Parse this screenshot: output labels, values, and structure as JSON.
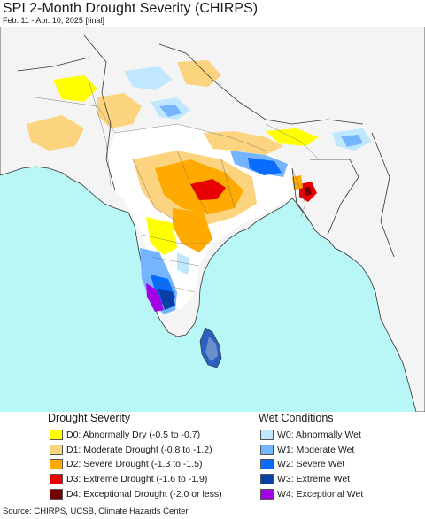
{
  "title": "SPI 2-Month Drought Severity (CHIRPS)",
  "subtitle": "Feb. 11 - Apr. 10, 2025 [final]",
  "legend": {
    "drought_title": "Drought Severity",
    "drought_items": [
      {
        "label": "D0: Abnormally Dry (-0.5 to -0.7)",
        "color": "#ffff00"
      },
      {
        "label": "D1: Moderate Drought (-0.8 to -1.2)",
        "color": "#fcd37f"
      },
      {
        "label": "D2: Severe Drought (-1.3 to -1.5)",
        "color": "#ffaa00"
      },
      {
        "label": "D3: Extreme Drought (-1.6 to -1.9)",
        "color": "#e60000"
      },
      {
        "label": "D4: Exceptional Drought (-2.0 or less)",
        "color": "#730000"
      }
    ],
    "wet_title": "Wet Conditions",
    "wet_items": [
      {
        "label": "W0: Abnormally Wet",
        "color": "#bfe8ff"
      },
      {
        "label": "W1: Moderate Wet",
        "color": "#75b4ff"
      },
      {
        "label": "W2: Severe Wet",
        "color": "#0a6bff"
      },
      {
        "label": "W3: Extreme Wet",
        "color": "#0a3fa8"
      },
      {
        "label": "W4: Exceptional Wet",
        "color": "#a300e6"
      }
    ]
  },
  "map_colors": {
    "ocean": "#b9f6f6",
    "land": "#f4f4f4",
    "no_anomaly": "#ffffff",
    "border": "#333333"
  },
  "source": "Source: CHIRPS, UCSB, Climate Hazards Center"
}
